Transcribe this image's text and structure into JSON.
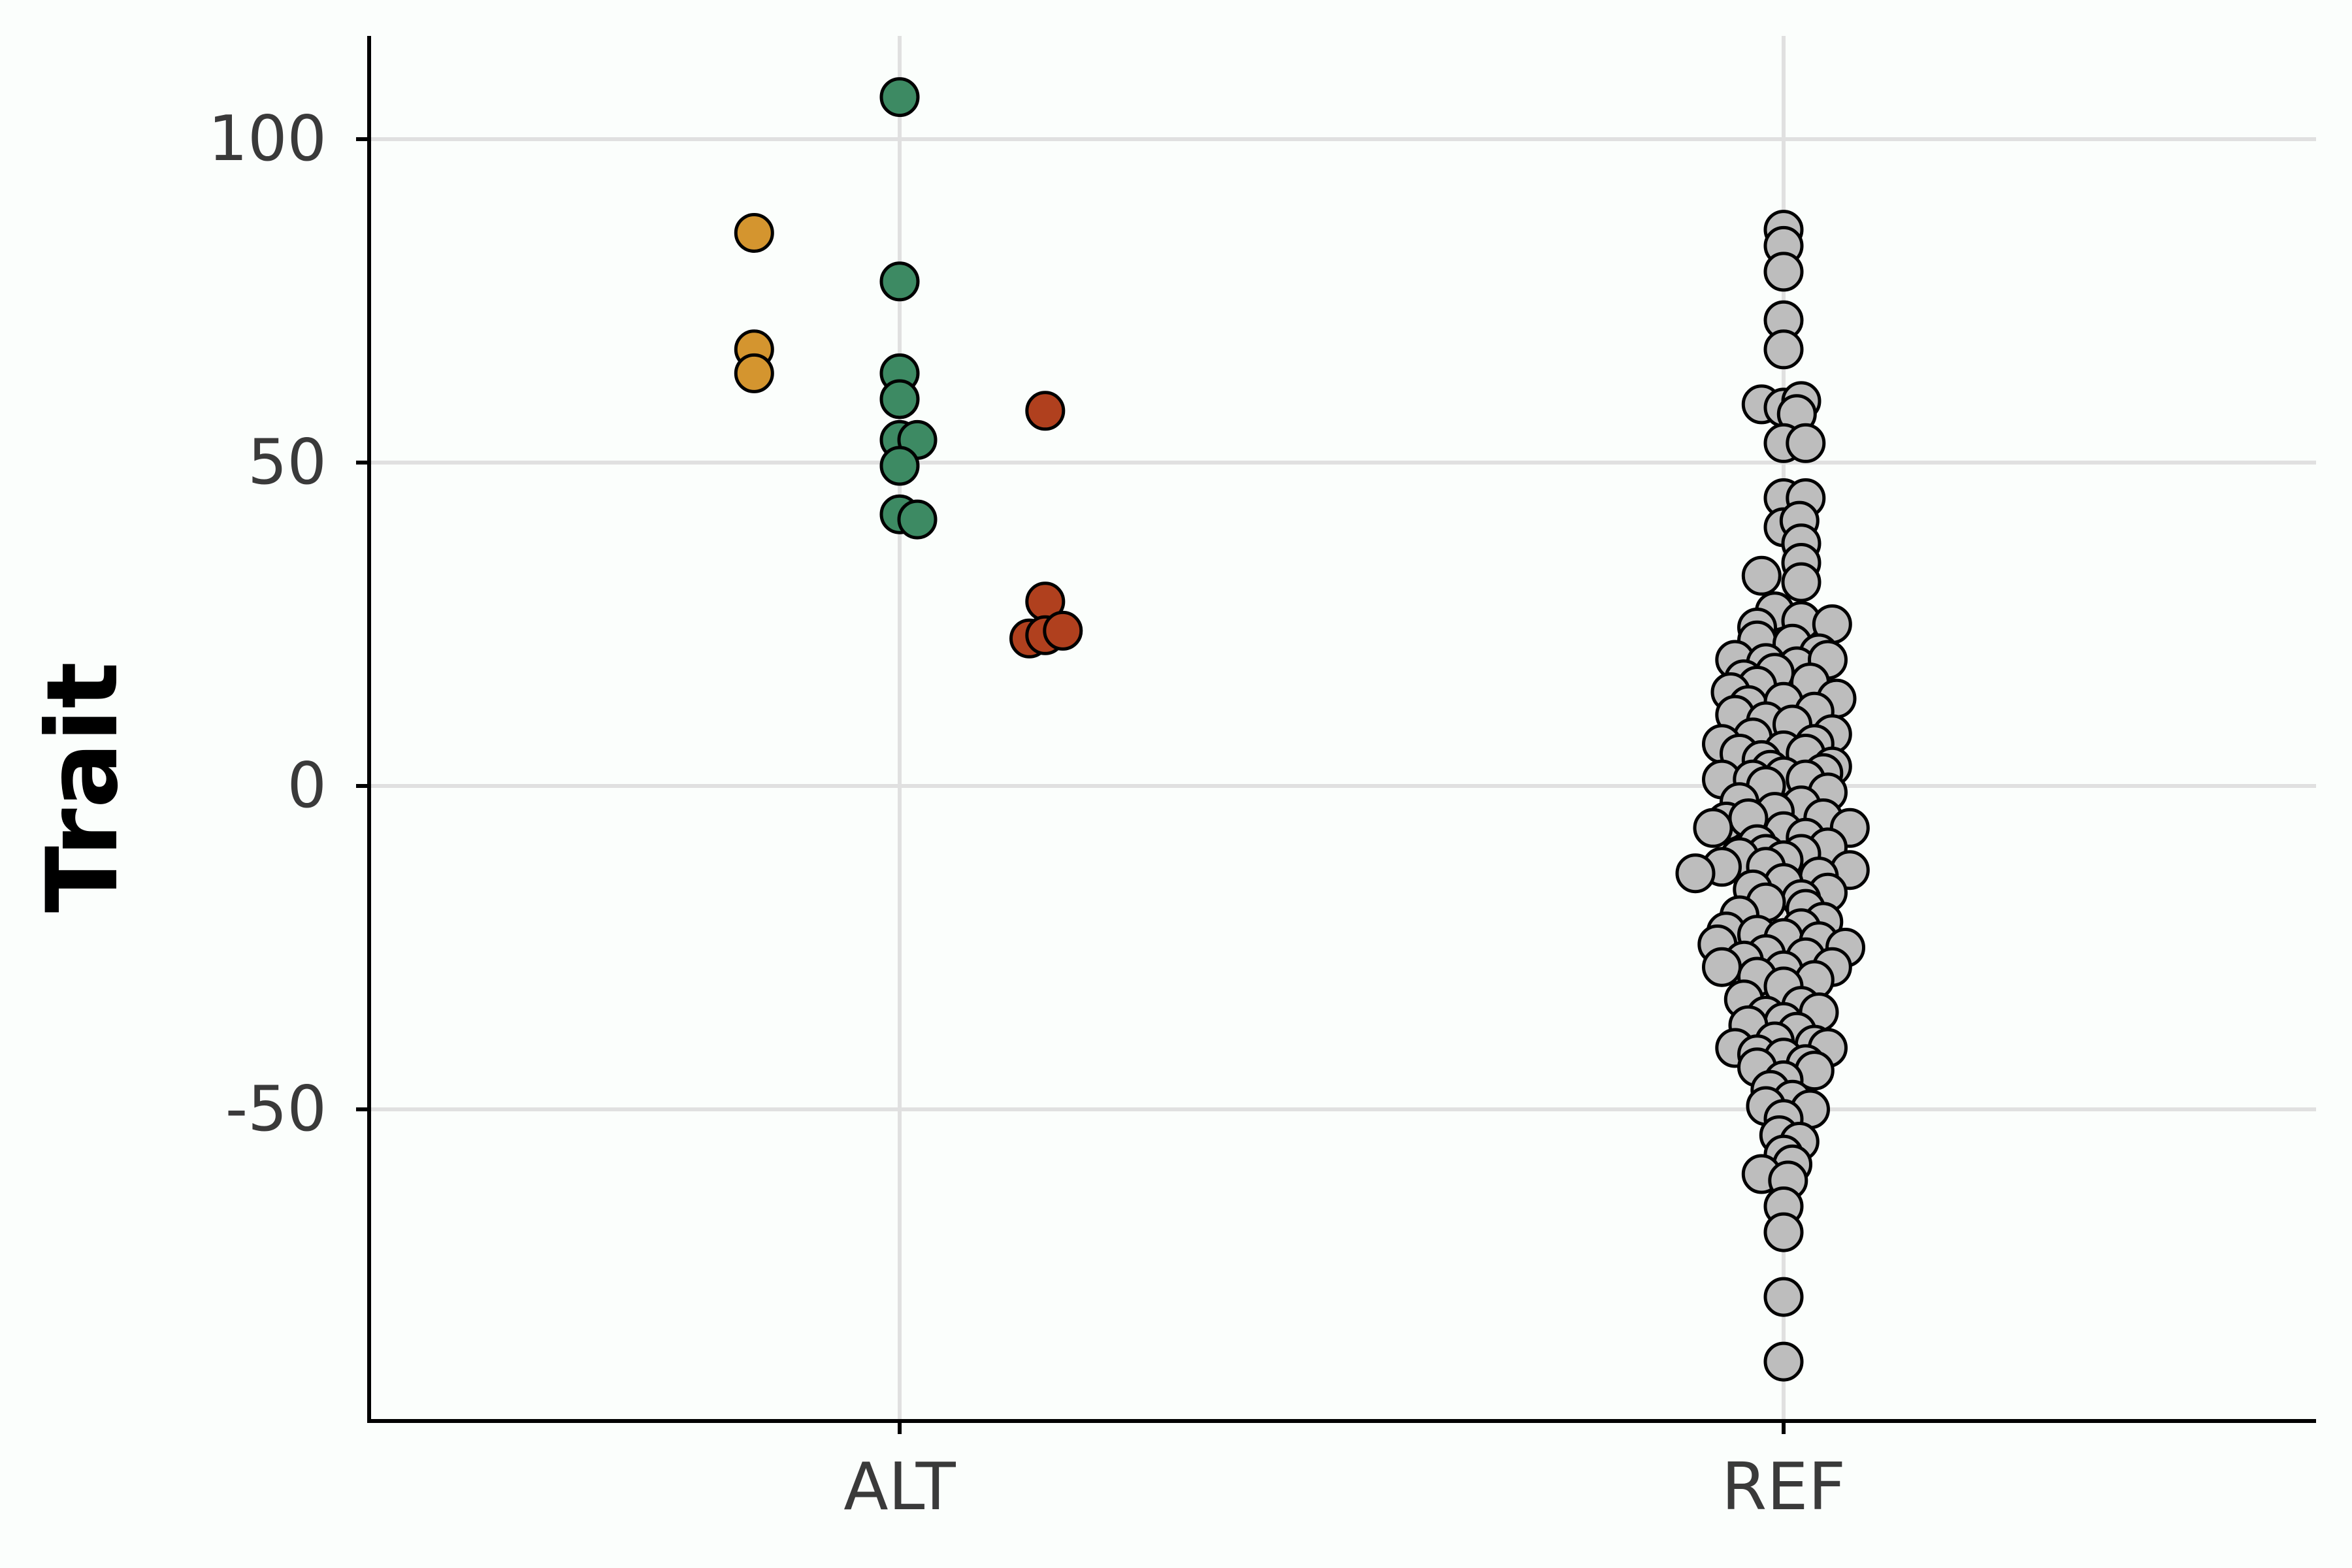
{
  "chart_data": {
    "type": "scatter",
    "title": "",
    "xlabel": "",
    "ylabel": "Trait",
    "categories": [
      "ALT",
      "REF"
    ],
    "ylim": [
      -99,
      116
    ],
    "yticks": [
      -50,
      0,
      50,
      100
    ],
    "grid": true,
    "legend": "none",
    "colors": {
      "background": "#fbfefc",
      "grid": "#e0e0e0",
      "axis": "#000000",
      "point_outline": "#000000"
    },
    "series": [
      {
        "color": "#d4952f",
        "points": [
          {
            "x": "ALT",
            "offset": -0.165,
            "y": 85.5
          },
          {
            "x": "ALT",
            "offset": -0.165,
            "y": 67.5
          },
          {
            "x": "ALT",
            "offset": -0.165,
            "y": 63.8
          }
        ]
      },
      {
        "color": "#3d8a63",
        "points": [
          {
            "x": "ALT",
            "offset": 0.0,
            "y": 106.5
          },
          {
            "x": "ALT",
            "offset": 0.0,
            "y": 78.0
          },
          {
            "x": "ALT",
            "offset": 0.0,
            "y": 63.8
          },
          {
            "x": "ALT",
            "offset": 0.0,
            "y": 59.8
          },
          {
            "x": "ALT",
            "offset": 0.0,
            "y": 53.5
          },
          {
            "x": "ALT",
            "offset": 0.02,
            "y": 53.5
          },
          {
            "x": "ALT",
            "offset": 0.0,
            "y": 49.5
          },
          {
            "x": "ALT",
            "offset": 0.0,
            "y": 42.0
          },
          {
            "x": "ALT",
            "offset": 0.02,
            "y": 41.2
          }
        ]
      },
      {
        "color": "#b0401e",
        "points": [
          {
            "x": "ALT",
            "offset": 0.165,
            "y": 58.0
          },
          {
            "x": "ALT",
            "offset": 0.165,
            "y": 28.5
          },
          {
            "x": "ALT",
            "offset": 0.147,
            "y": 22.8
          },
          {
            "x": "ALT",
            "offset": 0.165,
            "y": 23.3
          },
          {
            "x": "ALT",
            "offset": 0.185,
            "y": 24.0
          }
        ]
      },
      {
        "color": "#bdbdbd",
        "points": [
          {
            "x": "REF",
            "offset": 0.0,
            "y": 86.0
          },
          {
            "x": "REF",
            "offset": 0.0,
            "y": 83.5
          },
          {
            "x": "REF",
            "offset": 0.0,
            "y": 79.5
          },
          {
            "x": "REF",
            "offset": 0.0,
            "y": 72.0
          },
          {
            "x": "REF",
            "offset": 0.0,
            "y": 67.5
          },
          {
            "x": "REF",
            "offset": -0.025,
            "y": 59.0
          },
          {
            "x": "REF",
            "offset": 0.0,
            "y": 58.5
          },
          {
            "x": "REF",
            "offset": 0.02,
            "y": 59.5
          },
          {
            "x": "REF",
            "offset": 0.015,
            "y": 57.5
          },
          {
            "x": "REF",
            "offset": 0.0,
            "y": 53.0
          },
          {
            "x": "REF",
            "offset": 0.025,
            "y": 53.0
          },
          {
            "x": "REF",
            "offset": 0.0,
            "y": 44.5
          },
          {
            "x": "REF",
            "offset": 0.025,
            "y": 44.5
          },
          {
            "x": "REF",
            "offset": 0.0,
            "y": 40.0
          },
          {
            "x": "REF",
            "offset": 0.018,
            "y": 41.0
          },
          {
            "x": "REF",
            "offset": 0.02,
            "y": 37.5
          },
          {
            "x": "REF",
            "offset": 0.02,
            "y": 34.5
          },
          {
            "x": "REF",
            "offset": -0.025,
            "y": 32.5
          },
          {
            "x": "REF",
            "offset": 0.02,
            "y": 31.5
          },
          {
            "x": "REF",
            "offset": -0.01,
            "y": 27.0
          },
          {
            "x": "REF",
            "offset": 0.02,
            "y": 25.5
          },
          {
            "x": "REF",
            "offset": -0.03,
            "y": 24.5
          },
          {
            "x": "REF",
            "offset": 0.055,
            "y": 25.0
          },
          {
            "x": "REF",
            "offset": -0.03,
            "y": 22.5
          },
          {
            "x": "REF",
            "offset": 0.01,
            "y": 22.0
          },
          {
            "x": "REF",
            "offset": 0.04,
            "y": 20.5
          },
          {
            "x": "REF",
            "offset": -0.055,
            "y": 19.5
          },
          {
            "x": "REF",
            "offset": -0.02,
            "y": 19.0
          },
          {
            "x": "REF",
            "offset": 0.015,
            "y": 18.5
          },
          {
            "x": "REF",
            "offset": 0.05,
            "y": 19.5
          },
          {
            "x": "REF",
            "offset": -0.045,
            "y": 16.5
          },
          {
            "x": "REF",
            "offset": -0.01,
            "y": 17.5
          },
          {
            "x": "REF",
            "offset": 0.03,
            "y": 16.0
          },
          {
            "x": "REF",
            "offset": -0.03,
            "y": 15.5
          },
          {
            "x": "REF",
            "offset": -0.06,
            "y": 14.5
          },
          {
            "x": "REF",
            "offset": 0.06,
            "y": 13.5
          },
          {
            "x": "REF",
            "offset": -0.04,
            "y": 12.5
          },
          {
            "x": "REF",
            "offset": 0.0,
            "y": 13.0
          },
          {
            "x": "REF",
            "offset": 0.035,
            "y": 11.5
          },
          {
            "x": "REF",
            "offset": -0.055,
            "y": 11.0
          },
          {
            "x": "REF",
            "offset": -0.02,
            "y": 10.0
          },
          {
            "x": "REF",
            "offset": 0.01,
            "y": 9.5
          },
          {
            "x": "REF",
            "offset": 0.055,
            "y": 8.0
          },
          {
            "x": "REF",
            "offset": -0.035,
            "y": 7.5
          },
          {
            "x": "REF",
            "offset": -0.07,
            "y": 6.5
          },
          {
            "x": "REF",
            "offset": 0.035,
            "y": 6.5
          },
          {
            "x": "REF",
            "offset": -0.05,
            "y": 5.0
          },
          {
            "x": "REF",
            "offset": 0.0,
            "y": 5.5
          },
          {
            "x": "REF",
            "offset": 0.025,
            "y": 5.0
          },
          {
            "x": "REF",
            "offset": -0.025,
            "y": 4.0
          },
          {
            "x": "REF",
            "offset": 0.055,
            "y": 3.0
          },
          {
            "x": "REF",
            "offset": -0.015,
            "y": 2.5
          },
          {
            "x": "REF",
            "offset": 0.045,
            "y": 2.0
          },
          {
            "x": "REF",
            "offset": -0.07,
            "y": 1.0
          },
          {
            "x": "REF",
            "offset": -0.035,
            "y": 1.0
          },
          {
            "x": "REF",
            "offset": 0.0,
            "y": 1.5
          },
          {
            "x": "REF",
            "offset": 0.025,
            "y": 1.0
          },
          {
            "x": "REF",
            "offset": -0.02,
            "y": 0.0
          },
          {
            "x": "REF",
            "offset": 0.05,
            "y": -1.0
          },
          {
            "x": "REF",
            "offset": -0.05,
            "y": -2.5
          },
          {
            "x": "REF",
            "offset": 0.02,
            "y": -3.0
          },
          {
            "x": "REF",
            "offset": -0.01,
            "y": -4.0
          },
          {
            "x": "REF",
            "offset": 0.045,
            "y": -5.0
          },
          {
            "x": "REF",
            "offset": -0.065,
            "y": -5.5
          },
          {
            "x": "REF",
            "offset": -0.04,
            "y": -5.0
          },
          {
            "x": "REF",
            "offset": -0.08,
            "y": -6.5
          },
          {
            "x": "REF",
            "offset": 0.075,
            "y": -6.5
          },
          {
            "x": "REF",
            "offset": 0.0,
            "y": -7.0
          },
          {
            "x": "REF",
            "offset": 0.025,
            "y": -8.0
          },
          {
            "x": "REF",
            "offset": -0.03,
            "y": -9.0
          },
          {
            "x": "REF",
            "offset": 0.05,
            "y": -9.5
          },
          {
            "x": "REF",
            "offset": 0.02,
            "y": -10.5
          },
          {
            "x": "REF",
            "offset": -0.02,
            "y": -10.5
          },
          {
            "x": "REF",
            "offset": -0.05,
            "y": -11.0
          },
          {
            "x": "REF",
            "offset": 0.0,
            "y": -11.5
          },
          {
            "x": "REF",
            "offset": -0.02,
            "y": -12.5
          },
          {
            "x": "REF",
            "offset": -0.07,
            "y": -12.5
          },
          {
            "x": "REF",
            "offset": 0.075,
            "y": -13.0
          },
          {
            "x": "REF",
            "offset": -0.1,
            "y": -13.5
          },
          {
            "x": "REF",
            "offset": 0.04,
            "y": -14.0
          },
          {
            "x": "REF",
            "offset": 0.0,
            "y": -15.0
          },
          {
            "x": "REF",
            "offset": -0.035,
            "y": -16.0
          },
          {
            "x": "REF",
            "offset": 0.05,
            "y": -16.5
          },
          {
            "x": "REF",
            "offset": 0.02,
            "y": -17.5
          },
          {
            "x": "REF",
            "offset": -0.02,
            "y": -18.0
          },
          {
            "x": "REF",
            "offset": 0.025,
            "y": -19.0
          },
          {
            "x": "REF",
            "offset": -0.05,
            "y": -20.0
          },
          {
            "x": "REF",
            "offset": 0.045,
            "y": -21.0
          },
          {
            "x": "REF",
            "offset": 0.02,
            "y": -22.0
          },
          {
            "x": "REF",
            "offset": -0.065,
            "y": -22.5
          },
          {
            "x": "REF",
            "offset": -0.03,
            "y": -23.0
          },
          {
            "x": "REF",
            "offset": 0.0,
            "y": -23.5
          },
          {
            "x": "REF",
            "offset": 0.04,
            "y": -24.0
          },
          {
            "x": "REF",
            "offset": -0.075,
            "y": -24.5
          },
          {
            "x": "REF",
            "offset": 0.07,
            "y": -25.0
          },
          {
            "x": "REF",
            "offset": -0.02,
            "y": -26.0
          },
          {
            "x": "REF",
            "offset": 0.025,
            "y": -26.5
          },
          {
            "x": "REF",
            "offset": -0.045,
            "y": -27.0
          },
          {
            "x": "REF",
            "offset": -0.07,
            "y": -28.0
          },
          {
            "x": "REF",
            "offset": 0.055,
            "y": -28.0
          },
          {
            "x": "REF",
            "offset": 0.0,
            "y": -28.5
          },
          {
            "x": "REF",
            "offset": -0.03,
            "y": -29.5
          },
          {
            "x": "REF",
            "offset": 0.035,
            "y": -30.0
          },
          {
            "x": "REF",
            "offset": 0.0,
            "y": -31.0
          },
          {
            "x": "REF",
            "offset": -0.045,
            "y": -33.0
          },
          {
            "x": "REF",
            "offset": 0.02,
            "y": -34.0
          },
          {
            "x": "REF",
            "offset": 0.04,
            "y": -35.0
          },
          {
            "x": "REF",
            "offset": -0.02,
            "y": -35.5
          },
          {
            "x": "REF",
            "offset": 0.0,
            "y": -36.5
          },
          {
            "x": "REF",
            "offset": -0.04,
            "y": -37.0
          },
          {
            "x": "REF",
            "offset": 0.015,
            "y": -38.0
          },
          {
            "x": "REF",
            "offset": -0.01,
            "y": -39.5
          },
          {
            "x": "REF",
            "offset": 0.035,
            "y": -40.0
          },
          {
            "x": "REF",
            "offset": -0.055,
            "y": -40.5
          },
          {
            "x": "REF",
            "offset": 0.05,
            "y": -40.5
          },
          {
            "x": "REF",
            "offset": -0.03,
            "y": -41.5
          },
          {
            "x": "REF",
            "offset": 0.0,
            "y": -42.0
          },
          {
            "x": "REF",
            "offset": 0.025,
            "y": -43.0
          },
          {
            "x": "REF",
            "offset": -0.03,
            "y": -43.5
          },
          {
            "x": "REF",
            "offset": 0.035,
            "y": -44.0
          },
          {
            "x": "REF",
            "offset": 0.0,
            "y": -45.5
          },
          {
            "x": "REF",
            "offset": -0.015,
            "y": -47.0
          },
          {
            "x": "REF",
            "offset": 0.01,
            "y": -48.5
          },
          {
            "x": "REF",
            "offset": -0.02,
            "y": -49.5
          },
          {
            "x": "REF",
            "offset": 0.03,
            "y": -50.0
          },
          {
            "x": "REF",
            "offset": 0.0,
            "y": -51.5
          },
          {
            "x": "REF",
            "offset": -0.005,
            "y": -54.0
          },
          {
            "x": "REF",
            "offset": 0.018,
            "y": -55.0
          },
          {
            "x": "REF",
            "offset": 0.0,
            "y": -57.0
          },
          {
            "x": "REF",
            "offset": 0.01,
            "y": -58.5
          },
          {
            "x": "REF",
            "offset": -0.025,
            "y": -60.0
          },
          {
            "x": "REF",
            "offset": 0.005,
            "y": -61.0
          },
          {
            "x": "REF",
            "offset": 0.0,
            "y": -65.0
          },
          {
            "x": "REF",
            "offset": 0.0,
            "y": -69.0
          },
          {
            "x": "REF",
            "offset": 0.0,
            "y": -79.0
          },
          {
            "x": "REF",
            "offset": 0.0,
            "y": -89.0
          }
        ]
      }
    ]
  }
}
